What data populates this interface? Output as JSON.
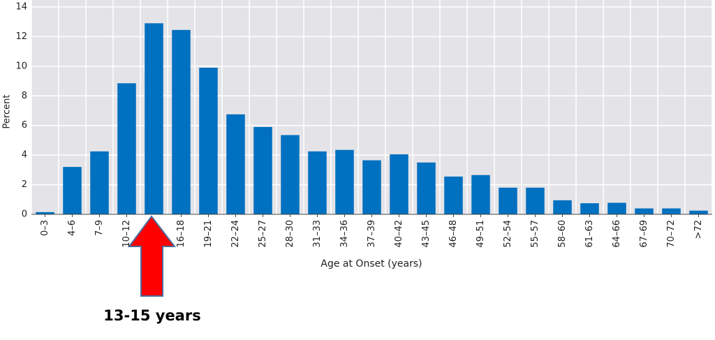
{
  "chart_data": {
    "type": "bar",
    "x_label": "Age at Onset (years)",
    "y_label": "Percent",
    "annotation": "13-15 years",
    "categories": [
      "0–3",
      "4–6",
      "7–9",
      "10–12",
      null,
      "16–18",
      "19–21",
      "22–24",
      "25–27",
      "28–30",
      "31–33",
      "34–36",
      "37–39",
      "40–42",
      "43–45",
      "46–48",
      "49–51",
      "52–54",
      "55–57",
      "58–60",
      "61–63",
      "64–66",
      "67–69",
      "70–72",
      ">72"
    ],
    "values": [
      0.15,
      3.2,
      4.25,
      8.85,
      12.9,
      12.45,
      9.9,
      6.75,
      5.9,
      5.35,
      4.25,
      4.35,
      3.65,
      4.05,
      3.5,
      2.55,
      2.65,
      1.8,
      1.8,
      0.95,
      0.75,
      0.78,
      0.4,
      0.4,
      0.25
    ],
    "color": "#0070c0",
    "ylim": [
      0,
      14
    ],
    "yticks": [
      0,
      2,
      4,
      6,
      8,
      10,
      12,
      14
    ],
    "grid": true
  }
}
